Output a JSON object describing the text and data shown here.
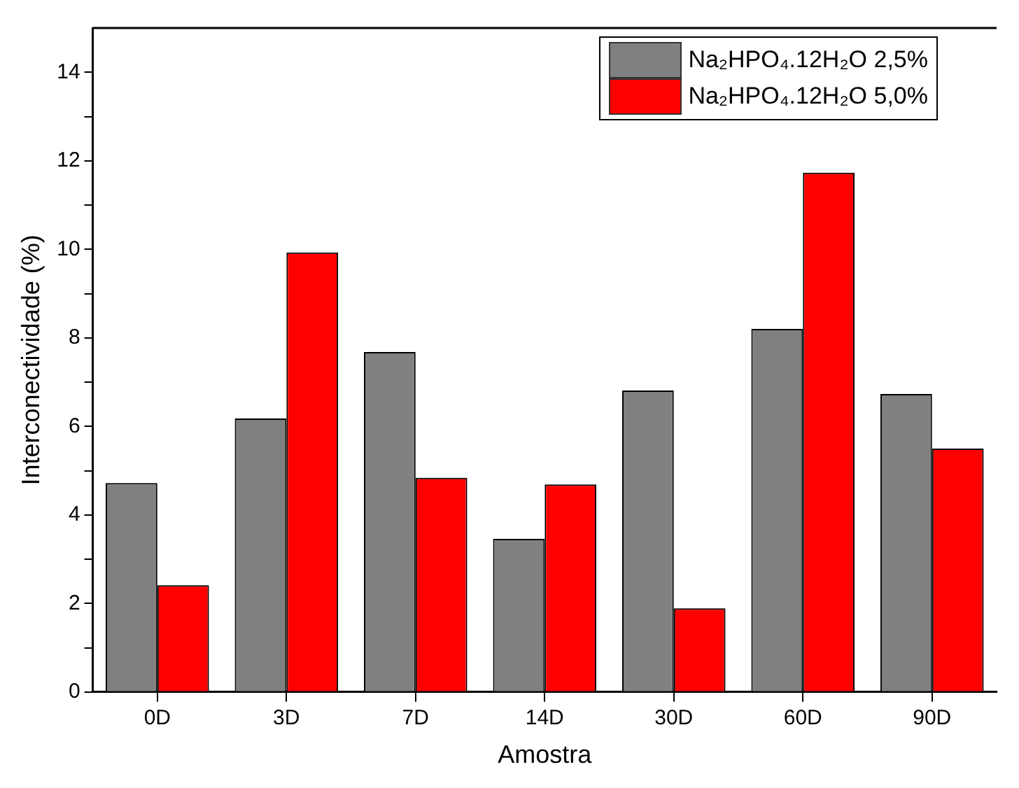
{
  "chart_data": {
    "type": "bar",
    "xlabel": "Amostra",
    "ylabel": "Interconectividade (%)",
    "categories": [
      "0D",
      "3D",
      "7D",
      "14D",
      "30D",
      "60D",
      "90D"
    ],
    "series": [
      {
        "name": "Na₂HPO₄.12H₂O 2,5%",
        "color": "#808080",
        "values": [
          4.72,
          6.18,
          7.68,
          3.46,
          6.81,
          8.2,
          6.73
        ]
      },
      {
        "name": "Na₂HPO₄.12H₂O 5,0%",
        "color": "#ff0000",
        "values": [
          2.41,
          9.93,
          4.84,
          4.69,
          1.89,
          11.73,
          5.5
        ]
      }
    ],
    "ylim": [
      0,
      15
    ],
    "yticks": [
      0,
      {
        "value": 1,
        "label": null
      },
      2,
      {
        "value": 3,
        "label": null
      },
      4,
      {
        "value": 5,
        "label": null
      },
      6,
      {
        "value": 7,
        "label": null
      },
      8,
      {
        "value": 9,
        "label": null
      },
      10,
      {
        "value": 11,
        "label": null
      },
      12,
      {
        "value": 13,
        "label": null
      },
      14
    ],
    "grid": false,
    "legend": "top right"
  }
}
